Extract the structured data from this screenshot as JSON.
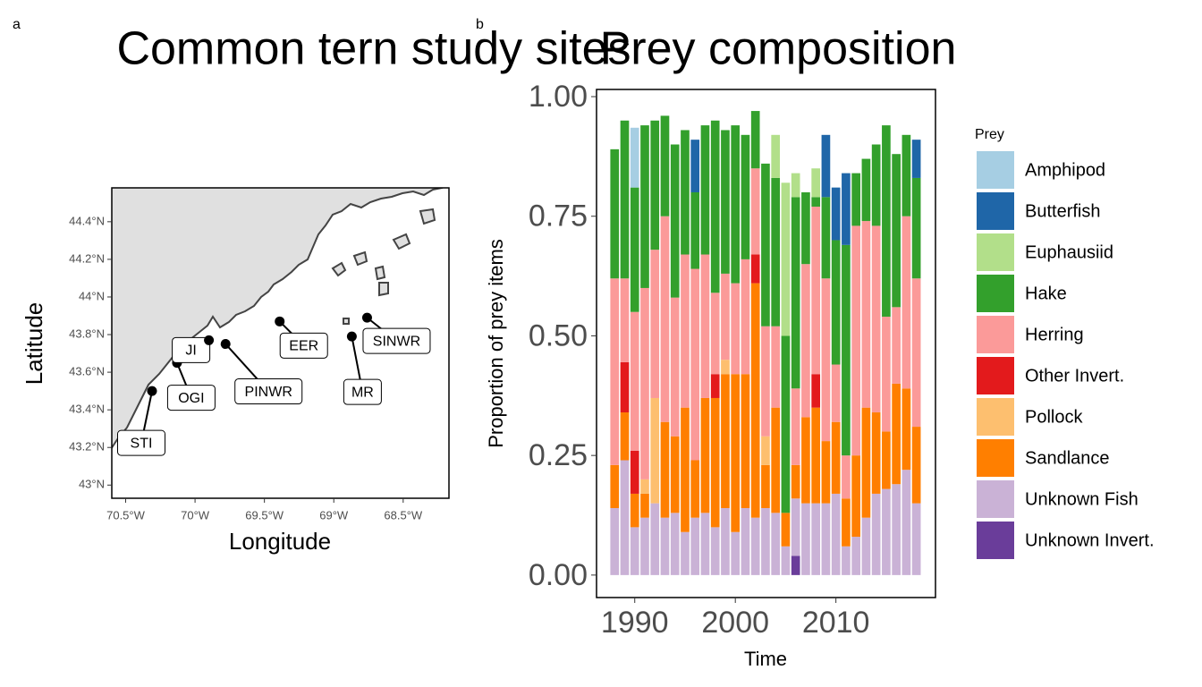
{
  "chart_data": [
    {
      "type": "map",
      "panel_label": "a",
      "title": "Common tern study sites",
      "xlabel": "Longitude",
      "ylabel": "Latitude",
      "xlim": [
        -70.6,
        -68.17
      ],
      "ylim": [
        42.93,
        44.58
      ],
      "xticks": [
        {
          "value": -70.5,
          "label": "70.5°W"
        },
        {
          "value": -70,
          "label": "70°W"
        },
        {
          "value": -69.5,
          "label": "69.5°W"
        },
        {
          "value": -69,
          "label": "69°W"
        },
        {
          "value": -68.5,
          "label": "68.5°W"
        }
      ],
      "yticks": [
        {
          "value": 43,
          "label": "43°N"
        },
        {
          "value": 43.2,
          "label": "43.2°N"
        },
        {
          "value": 43.4,
          "label": "43.4°N"
        },
        {
          "value": 43.6,
          "label": "43.6°N"
        },
        {
          "value": 43.8,
          "label": "43.8°N"
        },
        {
          "value": 44,
          "label": "44°N"
        },
        {
          "value": 44.2,
          "label": "44.2°N"
        },
        {
          "value": 44.4,
          "label": "44.4°N"
        }
      ],
      "sites": [
        {
          "name": "STI",
          "lon": -70.31,
          "lat": 43.5
        },
        {
          "name": "OGI",
          "lon": -70.13,
          "lat": 43.65
        },
        {
          "name": "JI",
          "lon": -69.9,
          "lat": 43.77
        },
        {
          "name": "PINWR",
          "lon": -69.78,
          "lat": 43.75
        },
        {
          "name": "EER",
          "lon": -69.39,
          "lat": 43.87
        },
        {
          "name": "MR",
          "lon": -68.87,
          "lat": 43.79
        },
        {
          "name": "SINWR",
          "lon": -68.76,
          "lat": 43.89
        }
      ],
      "land_color": "#e0e0e0",
      "point_color": "#000000"
    },
    {
      "type": "stacked_bar",
      "panel_label": "b",
      "title": "Prey composition",
      "xlabel": "Time",
      "ylabel": "Proportion of prey items",
      "legend_title": "Prey",
      "legend": "right",
      "xlim": [
        1986.2,
        2019.9
      ],
      "ylim": [
        -0.047,
        1.015
      ],
      "xticks": [
        1990,
        2000,
        2010
      ],
      "yticks": [
        {
          "value": 0,
          "label": "0.00"
        },
        {
          "value": 0.25,
          "label": "0.25"
        },
        {
          "value": 0.5,
          "label": "0.50"
        },
        {
          "value": 0.75,
          "label": "0.75"
        },
        {
          "value": 1,
          "label": "1.00"
        }
      ],
      "x": [
        1988,
        1989,
        1990,
        1991,
        1992,
        1993,
        1994,
        1995,
        1996,
        1997,
        1998,
        1999,
        2000,
        2001,
        2002,
        2003,
        2004,
        2005,
        2006,
        2007,
        2008,
        2009,
        2010,
        2011,
        2012,
        2013,
        2014,
        2015,
        2016,
        2017,
        2018
      ],
      "series": [
        {
          "name": "Amphipod",
          "color": "#a6cee3",
          "values": [
            0,
            0,
            0.125,
            0,
            0,
            0,
            0,
            0,
            0,
            0,
            0,
            0,
            0,
            0,
            0,
            0,
            0,
            0,
            0,
            0,
            0,
            0,
            0,
            0,
            0,
            0,
            0,
            0,
            0,
            0,
            0
          ]
        },
        {
          "name": "Butterfish",
          "color": "#1f66a8",
          "values": [
            0,
            0,
            0,
            0,
            0,
            0,
            0,
            0,
            0.11,
            0,
            0,
            0,
            0,
            0,
            0,
            0,
            0,
            0,
            0,
            0,
            0,
            0.13,
            0.11,
            0.15,
            0,
            0,
            0,
            0,
            0,
            0,
            0.08
          ]
        },
        {
          "name": "Euphausiid",
          "color": "#b2df8a",
          "values": [
            0,
            0,
            0,
            0,
            0,
            0,
            0,
            0,
            0,
            0,
            0,
            0,
            0,
            0,
            0,
            0,
            0.09,
            0.32,
            0.05,
            0,
            0.06,
            0,
            0,
            0,
            0,
            0,
            0,
            0,
            0,
            0,
            0
          ]
        },
        {
          "name": "Hake",
          "color": "#33a02c",
          "values": [
            0.27,
            0.33,
            0.26,
            0.34,
            0.27,
            0.21,
            0.32,
            0.26,
            0.16,
            0.27,
            0.36,
            0.3,
            0.33,
            0.26,
            0.12,
            0.34,
            0.31,
            0.37,
            0.4,
            0.15,
            0.02,
            0.17,
            0.26,
            0.44,
            0.11,
            0.13,
            0.17,
            0.4,
            0.32,
            0.17,
            0.21
          ]
        },
        {
          "name": "Herring",
          "color": "#fb9a99",
          "values": [
            0.39,
            0.175,
            0.29,
            0.4,
            0.31,
            0.43,
            0.29,
            0.32,
            0.4,
            0.3,
            0.17,
            0.18,
            0.19,
            0.24,
            0.18,
            0.23,
            0.17,
            0,
            0.16,
            0.32,
            0.35,
            0.34,
            0.12,
            0.09,
            0.48,
            0.39,
            0.39,
            0.24,
            0.16,
            0.36,
            0.31
          ]
        },
        {
          "name": "Other Invert.",
          "color": "#e31a1c",
          "values": [
            0,
            0.105,
            0.09,
            0,
            0,
            0,
            0,
            0,
            0,
            0,
            0.05,
            0,
            0,
            0,
            0.06,
            0,
            0,
            0,
            0,
            0,
            0.07,
            0,
            0,
            0,
            0,
            0,
            0,
            0,
            0,
            0,
            0
          ]
        },
        {
          "name": "Pollock",
          "color": "#fdbf6f",
          "values": [
            0,
            0,
            0,
            0.03,
            0.22,
            0,
            0,
            0,
            0,
            0,
            0,
            0.03,
            0,
            0,
            0,
            0.06,
            0,
            0,
            0,
            0,
            0,
            0,
            0,
            0,
            0,
            0,
            0,
            0,
            0,
            0,
            0
          ]
        },
        {
          "name": "Sandlance",
          "color": "#ff7f00",
          "values": [
            0.09,
            0.1,
            0.07,
            0.05,
            0,
            0.2,
            0.16,
            0.26,
            0.12,
            0.24,
            0.27,
            0.28,
            0.33,
            0.28,
            0.49,
            0.09,
            0.22,
            0.07,
            0.07,
            0.18,
            0.2,
            0.13,
            0.15,
            0.1,
            0.17,
            0.23,
            0.17,
            0.12,
            0.21,
            0.17,
            0.16
          ]
        },
        {
          "name": "Unknown Fish",
          "color": "#cab2d6",
          "values": [
            0.14,
            0.24,
            0.1,
            0.12,
            0.15,
            0.12,
            0.13,
            0.09,
            0.12,
            0.13,
            0.1,
            0.14,
            0.09,
            0.14,
            0.12,
            0.14,
            0.13,
            0.06,
            0.12,
            0.15,
            0.15,
            0.15,
            0.17,
            0.06,
            0.08,
            0.12,
            0.17,
            0.18,
            0.19,
            0.22,
            0.15
          ]
        },
        {
          "name": "Unknown Invert.",
          "color": "#6a3d9a",
          "values": [
            0,
            0,
            0,
            0,
            0,
            0,
            0,
            0,
            0,
            0,
            0,
            0,
            0,
            0,
            0,
            0,
            0,
            0,
            0.04,
            0,
            0,
            0,
            0,
            0,
            0,
            0,
            0,
            0,
            0,
            0,
            0
          ]
        }
      ]
    }
  ]
}
